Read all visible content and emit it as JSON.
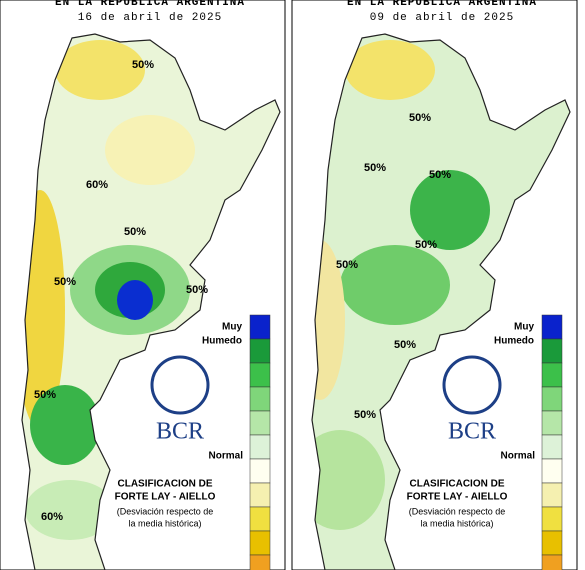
{
  "panels": [
    {
      "heading": "EN LA REPUBLICA ARGENTINA",
      "date": "16 de abril de 2025",
      "contour_labels": [
        "50%",
        "60%",
        "50%",
        "50%",
        "50%",
        "50%",
        "60%"
      ],
      "legend_top": [
        "Muy",
        "Humedo"
      ],
      "logo": "BCR",
      "legend_middle": "Normal",
      "classification": [
        "CLASIFICACION DE",
        "FORTE LAY - AIELLO"
      ],
      "note": [
        "(Desviación respecto de",
        "la media histórica)"
      ]
    },
    {
      "heading": "EN LA REPUBLICA ARGENTINA",
      "date": "09 de abril de 2025",
      "contour_labels": [
        "50%",
        "50%",
        "50%",
        "50%",
        "50%",
        "50%",
        "50%"
      ],
      "legend_top": [
        "Muy",
        "Humedo"
      ],
      "logo": "BCR",
      "legend_middle": "Normal",
      "classification": [
        "CLASIFICACION DE",
        "FORTE LAY - AIELLO"
      ],
      "note": [
        "(Desviación respecto de",
        "la media histórica)"
      ]
    }
  ]
}
